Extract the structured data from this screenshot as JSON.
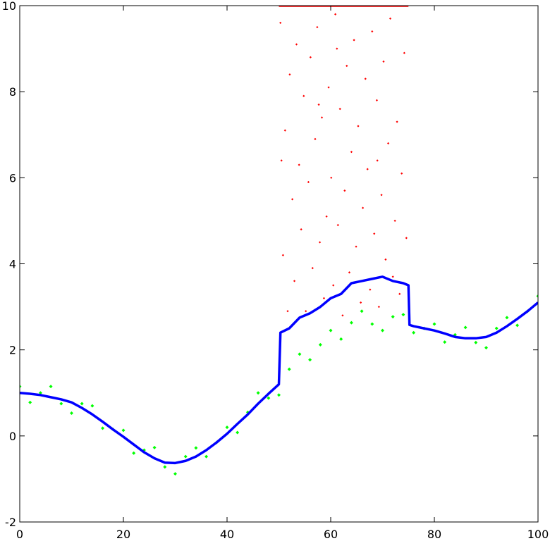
{
  "chart_data": {
    "type": "scatter",
    "xlim": [
      0,
      100
    ],
    "ylim": [
      -2,
      10
    ],
    "xticks": [
      0,
      20,
      40,
      60,
      80,
      100
    ],
    "yticks": [
      -2,
      0,
      2,
      4,
      6,
      8,
      10
    ],
    "grid": false,
    "series": [
      {
        "type": "scatter",
        "color": "#00ff00",
        "x": [
          0,
          2,
          4,
          6,
          8,
          10,
          12,
          14,
          16,
          18,
          20,
          22,
          24,
          26,
          28,
          30,
          32,
          34,
          36,
          38,
          40,
          42,
          44,
          46,
          48,
          50,
          52,
          54,
          56,
          58,
          60,
          62,
          64,
          66,
          68,
          70,
          72,
          74,
          76,
          78,
          80,
          82,
          84,
          86,
          88,
          90,
          92,
          94,
          96,
          98,
          100
        ],
        "values": [
          1.15,
          0.78,
          1.0,
          1.15,
          0.75,
          0.53,
          0.75,
          0.7,
          0.18,
          0.15,
          0.13,
          -0.4,
          -0.33,
          -0.27,
          -0.72,
          -0.88,
          -0.48,
          -0.28,
          -0.48,
          -0.15,
          0.2,
          0.08,
          0.55,
          1.0,
          0.88,
          0.95,
          1.55,
          1.9,
          1.77,
          2.12,
          2.45,
          2.25,
          2.63,
          2.9,
          2.6,
          2.45,
          2.77,
          2.82,
          2.4,
          2.5,
          2.6,
          2.18,
          2.35,
          2.52,
          2.17,
          2.05,
          2.5,
          2.75,
          2.57,
          2.9,
          3.25
        ]
      },
      {
        "type": "scatter",
        "color": "#ff0000",
        "x": [
          50.3,
          50.8,
          51.2,
          51.7,
          52.1,
          52.6,
          53.0,
          53.4,
          53.9,
          54.3,
          54.8,
          55.2,
          55.7,
          56.1,
          56.5,
          57.0,
          57.4,
          57.9,
          58.3,
          58.7,
          59.2,
          59.6,
          60.1,
          60.5,
          60.9,
          61.4,
          61.8,
          62.3,
          62.7,
          63.1,
          63.6,
          64.0,
          64.5,
          64.9,
          65.3,
          65.8,
          66.2,
          66.7,
          67.1,
          67.6,
          68.0,
          68.4,
          68.9,
          69.3,
          69.8,
          70.2,
          70.6,
          71.1,
          71.5,
          72.0,
          72.4,
          72.8,
          73.3,
          73.7,
          74.2,
          74.6,
          50.5,
          61.2,
          69.0,
          57.7
        ],
        "values": [
          9.6,
          4.2,
          7.1,
          2.9,
          8.4,
          5.5,
          3.6,
          9.1,
          6.3,
          4.8,
          7.9,
          2.9,
          5.9,
          8.8,
          3.9,
          6.9,
          9.5,
          4.5,
          7.4,
          3.2,
          5.1,
          8.1,
          6.0,
          3.5,
          9.8,
          4.9,
          7.6,
          2.8,
          5.7,
          8.6,
          3.8,
          6.6,
          9.2,
          4.4,
          7.2,
          3.1,
          5.3,
          8.3,
          6.2,
          3.4,
          9.4,
          4.7,
          7.8,
          3.0,
          5.6,
          8.7,
          4.1,
          6.8,
          9.7,
          3.7,
          5.0,
          7.3,
          3.3,
          6.1,
          8.9,
          4.6,
          6.4,
          9.0,
          6.4,
          7.7
        ]
      },
      {
        "type": "line",
        "color": "#ff0000",
        "x": [
          50,
          75
        ],
        "values": [
          10,
          10
        ]
      },
      {
        "type": "line",
        "color": "#0000ff",
        "x": [
          0,
          2,
          4,
          6,
          8,
          10,
          12,
          14,
          16,
          18,
          20,
          22,
          24,
          26,
          28,
          30,
          32,
          34,
          36,
          38,
          40,
          42,
          44,
          46,
          48,
          50,
          50.3,
          52,
          54,
          56,
          58,
          60,
          62,
          64,
          66,
          68,
          70,
          72,
          74,
          75,
          75.2,
          76,
          78,
          80,
          82,
          84,
          86,
          88,
          90,
          92,
          94,
          96,
          98,
          100
        ],
        "values": [
          1.0,
          0.98,
          0.95,
          0.9,
          0.85,
          0.78,
          0.65,
          0.5,
          0.33,
          0.15,
          -0.02,
          -0.2,
          -0.38,
          -0.52,
          -0.62,
          -0.63,
          -0.58,
          -0.48,
          -0.33,
          -0.15,
          0.05,
          0.28,
          0.5,
          0.75,
          0.98,
          1.2,
          2.4,
          2.5,
          2.75,
          2.85,
          3.0,
          3.2,
          3.3,
          3.55,
          3.6,
          3.65,
          3.7,
          3.6,
          3.55,
          3.5,
          2.58,
          2.55,
          2.5,
          2.45,
          2.38,
          2.3,
          2.27,
          2.27,
          2.3,
          2.4,
          2.55,
          2.72,
          2.9,
          3.1
        ]
      }
    ]
  }
}
